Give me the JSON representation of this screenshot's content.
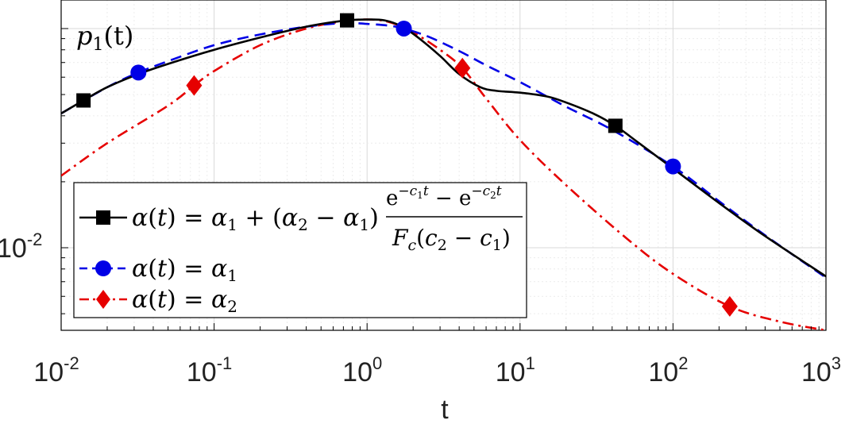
{
  "chart_data": {
    "type": "line",
    "title": "",
    "annotation": {
      "base": "p",
      "sub": "1",
      "rest": "(t)"
    },
    "xlabel": "t",
    "ylabel": "",
    "xscale": "log",
    "yscale": "log",
    "xlim": [
      0.01,
      1000
    ],
    "ylim": [
      0.0042,
      0.135
    ],
    "grid": true,
    "legend_position": "bottom-left",
    "x_ticks": [
      {
        "base": "10",
        "exp": "-2",
        "value": 0.01
      },
      {
        "base": "10",
        "exp": "-1",
        "value": 0.1
      },
      {
        "base": "10",
        "exp": "0",
        "value": 1
      },
      {
        "base": "10",
        "exp": "1",
        "value": 10
      },
      {
        "base": "10",
        "exp": "2",
        "value": 100
      },
      {
        "base": "10",
        "exp": "3",
        "value": 1000
      }
    ],
    "y_ticks": [
      {
        "base": "10",
        "exp": "-2",
        "value": 0.01
      }
    ],
    "series": [
      {
        "name": "α(t) = α1 + (α2 − α1)(e^(−c1 t) − e^(−c2 t)) / (Fc(c2 − c1))",
        "color": "#000000",
        "dash": "solid",
        "marker": "square",
        "x": [
          0.01,
          0.014,
          0.02,
          0.032,
          0.05,
          0.1,
          0.2,
          0.35,
          0.5,
          0.74,
          1.0,
          1.3,
          1.7,
          2.2,
          3.0,
          4.0,
          5.5,
          7.0,
          10,
          15,
          20,
          30,
          42,
          60,
          100,
          200,
          400,
          1000
        ],
        "y": [
          0.041,
          0.047,
          0.054,
          0.062,
          0.069,
          0.08,
          0.091,
          0.1,
          0.105,
          0.109,
          0.11,
          0.109,
          0.102,
          0.09,
          0.075,
          0.062,
          0.054,
          0.052,
          0.051,
          0.049,
          0.046,
          0.041,
          0.036,
          0.03,
          0.023,
          0.016,
          0.0113,
          0.0074
        ],
        "markers": [
          [
            0.014,
            0.047
          ],
          [
            0.74,
            0.109
          ],
          [
            42,
            0.036
          ]
        ]
      },
      {
        "name": "α(t) = α1",
        "color": "#0000e6",
        "dash": "dashed",
        "marker": "circle",
        "x": [
          0.01,
          0.02,
          0.032,
          0.05,
          0.1,
          0.2,
          0.4,
          0.7,
          1.0,
          1.4,
          1.74,
          2.5,
          4.0,
          6.0,
          10,
          20,
          40,
          100,
          200,
          400,
          1000
        ],
        "y": [
          0.041,
          0.054,
          0.063,
          0.071,
          0.084,
          0.094,
          0.102,
          0.106,
          0.105,
          0.103,
          0.1,
          0.092,
          0.079,
          0.068,
          0.057,
          0.044,
          0.0345,
          0.0235,
          0.0163,
          0.0114,
          0.0073
        ],
        "markers": [
          [
            0.032,
            0.063
          ],
          [
            1.74,
            0.1
          ],
          [
            100,
            0.0235
          ]
        ]
      },
      {
        "name": "α(t) = α2",
        "color": "#e60000",
        "dash": "dashdot",
        "marker": "diamond",
        "x": [
          0.01,
          0.02,
          0.05,
          0.074,
          0.1,
          0.2,
          0.4,
          0.7,
          1.0,
          1.4,
          2.0,
          3.0,
          4.2,
          6.0,
          10,
          20,
          50,
          100,
          235,
          500,
          1000
        ],
        "y": [
          0.0213,
          0.03,
          0.0445,
          0.055,
          0.064,
          0.084,
          0.1,
          0.108,
          0.11,
          0.107,
          0.096,
          0.08,
          0.066,
          0.048,
          0.031,
          0.0193,
          0.011,
          0.0076,
          0.0054,
          0.0046,
          0.0042
        ],
        "markers": [
          [
            0.074,
            0.055
          ],
          [
            4.2,
            0.066
          ],
          [
            235,
            0.0054
          ]
        ]
      }
    ],
    "legend": [
      {
        "label_prefix": "α(t) = α",
        "sub": "1",
        "mid": " + (α",
        "sub2": "2",
        "mid2": " − α",
        "sub3": "1",
        "end": ")",
        "frac_num": "e−c₁t − e−c₂t",
        "frac_den": "Fc(c₂ − c₁)"
      },
      {
        "label_prefix": "α(t) = α",
        "sub": "1"
      },
      {
        "label_prefix": "α(t) = α",
        "sub": "2"
      }
    ]
  }
}
